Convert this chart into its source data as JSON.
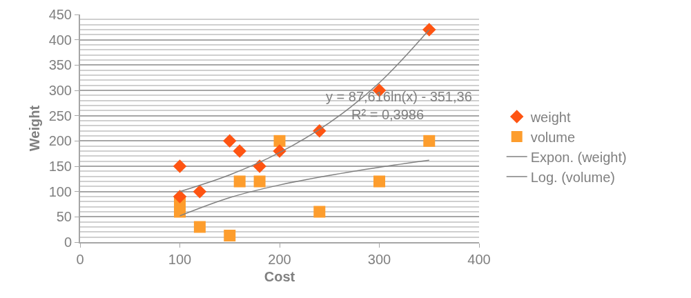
{
  "chart_data": {
    "type": "scatter",
    "xlabel": "Cost",
    "ylabel": "Weight",
    "xlim": [
      0,
      400
    ],
    "xticks": [
      0,
      100,
      200,
      300,
      400
    ],
    "ylim": [
      0,
      450
    ],
    "yticks": [
      0,
      50,
      100,
      150,
      200,
      250,
      300,
      350,
      400,
      450
    ],
    "grid": "y",
    "legend": "right",
    "annotations": [
      "y = 87,616ln(x) - 351,36",
      "R² = 0,3986"
    ],
    "series": [
      {
        "name": "weight",
        "marker": "diamond",
        "color": "#fe5412",
        "x": [
          100,
          100,
          120,
          150,
          160,
          180,
          200,
          240,
          300,
          350
        ],
        "values": [
          150,
          90,
          100,
          200,
          180,
          150,
          180,
          220,
          300,
          420
        ]
      },
      {
        "name": "volume",
        "marker": "square",
        "color": "#fd9d2d",
        "x": [
          100,
          100,
          120,
          150,
          160,
          180,
          200,
          240,
          300,
          350
        ],
        "values": [
          80,
          60,
          30,
          13,
          120,
          120,
          200,
          60,
          120,
          200
        ]
      },
      {
        "name": "Expon. (weight)",
        "type": "line",
        "marker": "none",
        "color": "#808080",
        "x": [
          100,
          150,
          200,
          250,
          300,
          350
        ],
        "values": [
          100,
          133,
          177,
          236,
          315,
          420
        ]
      },
      {
        "name": "Log. (volume)",
        "type": "line",
        "marker": "none",
        "color": "#808080",
        "x": [
          100,
          150,
          200,
          250,
          300,
          350
        ],
        "values": [
          52,
          88,
          113,
          132,
          148,
          162
        ]
      }
    ]
  }
}
